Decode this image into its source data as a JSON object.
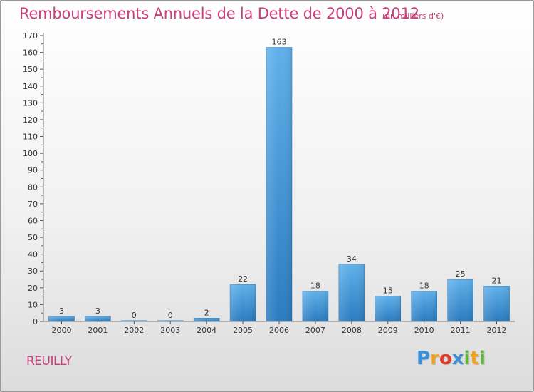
{
  "title": "Remboursements Annuels de la Dette de 2000 à 2012",
  "subtitle": "(en milliers d'€)",
  "city": "REUILLY",
  "logo": {
    "letters": [
      "P",
      "r",
      "o",
      "x",
      "i",
      "t",
      "i"
    ],
    "colors": [
      "#3a8fd8",
      "#f0a21c",
      "#e23a2a",
      "#3a8fd8",
      "#62b43a",
      "#f0a21c",
      "#62b43a"
    ]
  },
  "colors": {
    "bar_top": "#5fb0ea",
    "bar_bottom": "#2a7bc0",
    "axis": "#7a7a7a",
    "grid_tick": "#555555",
    "text": "#333333",
    "accent": "#c8407a"
  },
  "chart_data": {
    "type": "bar",
    "title": "Remboursements Annuels de la Dette de 2000 à 2012",
    "xlabel": "",
    "ylabel": "",
    "categories": [
      "2000",
      "2001",
      "2002",
      "2003",
      "2004",
      "2005",
      "2006",
      "2007",
      "2008",
      "2009",
      "2010",
      "2011",
      "2012"
    ],
    "values": [
      3,
      3,
      0,
      0,
      2,
      22,
      163,
      18,
      34,
      15,
      18,
      25,
      21
    ],
    "ylim": [
      0,
      170
    ],
    "yticks": [
      0,
      10,
      20,
      30,
      40,
      50,
      60,
      70,
      80,
      90,
      100,
      110,
      120,
      130,
      140,
      150,
      160,
      170
    ]
  }
}
